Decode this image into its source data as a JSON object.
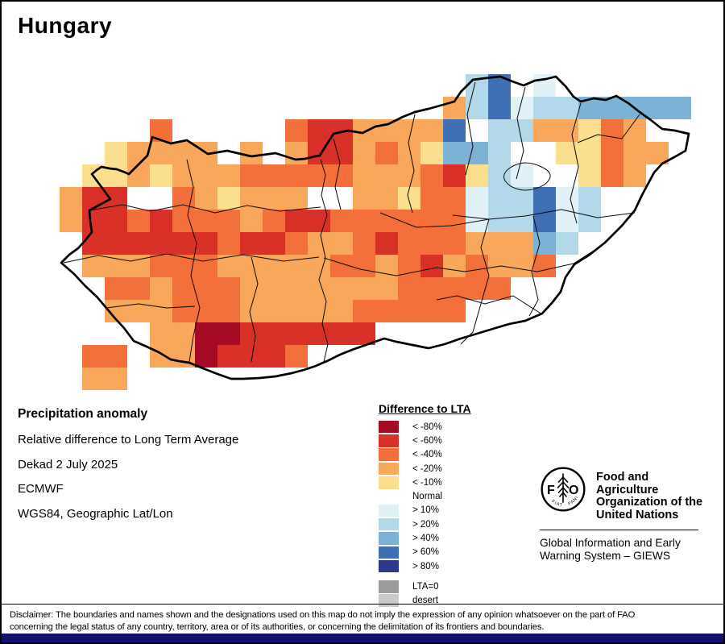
{
  "header": {
    "title": "Hungary"
  },
  "info": {
    "title": "Precipitation anomaly",
    "lines": [
      "Relative difference to Long Term Average",
      "Dekad 2 July 2025",
      "ECMWF",
      "WGS84, Geographic Lat/Lon"
    ]
  },
  "legend": {
    "title": "Difference to LTA",
    "items": [
      {
        "label": "< -80%",
        "color": "#A50C23"
      },
      {
        "label": "< -60%",
        "color": "#D93027"
      },
      {
        "label": "< -40%",
        "color": "#F3703B"
      },
      {
        "label": "< -20%",
        "color": "#F9A75A"
      },
      {
        "label": "< -10%",
        "color": "#FBDF8F"
      },
      {
        "label": "Normal",
        "color": null
      },
      {
        "label": "> 10%",
        "color": "#E0F1F8"
      },
      {
        "label": "> 20%",
        "color": "#B2D9EA"
      },
      {
        "label": "> 40%",
        "color": "#7CB2D5"
      },
      {
        "label": "> 60%",
        "color": "#3F70B5"
      },
      {
        "label": "> 80%",
        "color": "#2C3A8E"
      }
    ],
    "extra": [
      {
        "label": "LTA=0",
        "color": "#9B9B9B"
      },
      {
        "label": "desert",
        "color": "#CACACA"
      }
    ]
  },
  "fao": {
    "org": [
      "Food and Agriculture",
      "Organization of the",
      "United Nations"
    ],
    "giews": [
      "Global Information and Early",
      "Warning System – GIEWS"
    ],
    "logo_motto": "FIAT · PANIS"
  },
  "disclaimer": [
    "Disclaimer: The boundaries and names shown and the designations used on this map do not imply the expression of any opinion whatsoever on the part of FAO",
    "concerning the legal status of any country, territory, area or of its authorities, or concerning the delimitation of its frontiers and boundaries."
  ],
  "chart_data": {
    "type": "heatmap",
    "title": "Precipitation anomaly – relative difference to Long Term Average, Dekad 2 July 2025 (ECMWF)",
    "region": "Hungary",
    "units": "% difference to LTA",
    "classes": [
      "< -80%",
      "< -60%",
      "< -40%",
      "< -20%",
      "< -10%",
      "Normal",
      "> 10%",
      "> 20%",
      "> 40%",
      "> 60%",
      "> 80%"
    ],
    "origin": [
      72,
      90
    ],
    "cell": 28,
    "palette": {
      "R": "#A50C23",
      "r": "#D93027",
      "O": "#F3703B",
      "o": "#F9A75A",
      "y": "#FBDF8F",
      "1": "#E0F1F8",
      "2": "#B2D9EA",
      "3": "#7CB2D5",
      "4": "#3F70B5",
      "5": "#2C3A8E"
    },
    "grid": [
      "..................24.1......",
      ".................o2412233333",
      "....O.....Orroooo4.22ooyOo..",
      "..yoooo.o.orroOoy332..yyOoo.",
      ".yyoyoooOOOOOoooOry21..yOo..",
      "orr..Ooyooo..ooyOO122412....",
      "orrOrOOOoOrrOOOOOO122412....",
      ".rrrrrrOrrOooOrOOOooo32.....",
      ".oooOOOoooooOOoOroOooO......",
      "..OOoOOOoooooooOOOOO........",
      "..oooOOOoooooOOOOO..........",
      "....ooRRrrrrrr..............",
      ".OO.ooRrrrO.................",
      ".oo........................."
    ]
  }
}
